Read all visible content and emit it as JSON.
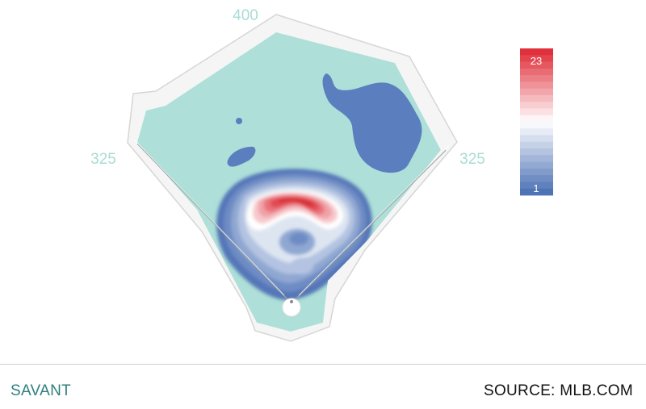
{
  "chart_data": {
    "type": "heatmap",
    "title": "",
    "field_distances": {
      "left_field": "325",
      "center_field": "400",
      "right_field": "325"
    },
    "colorscale": {
      "min_label": "1",
      "max_label": "23",
      "min": 1,
      "max": 23,
      "colors": [
        "#4f74b6",
        "#ffffff",
        "#e0303b"
      ]
    },
    "hot_spots": [
      {
        "zone": "shallow center field",
        "intensity": 23
      },
      {
        "zone": "up the middle, behind second base",
        "intensity": 12
      },
      {
        "zone": "deep right-center field",
        "intensity": 3
      },
      {
        "zone": "left-center field",
        "intensity": 2
      }
    ],
    "colors": {
      "field": "#aedfd8",
      "wall": "#f5f5f5",
      "wall_outline": "#d6d6d6",
      "label": "#a9dcd6"
    }
  },
  "footer": {
    "brand": "SAVANT",
    "brand_color": "#2f7f82",
    "source": "SOURCE: MLB.COM"
  }
}
